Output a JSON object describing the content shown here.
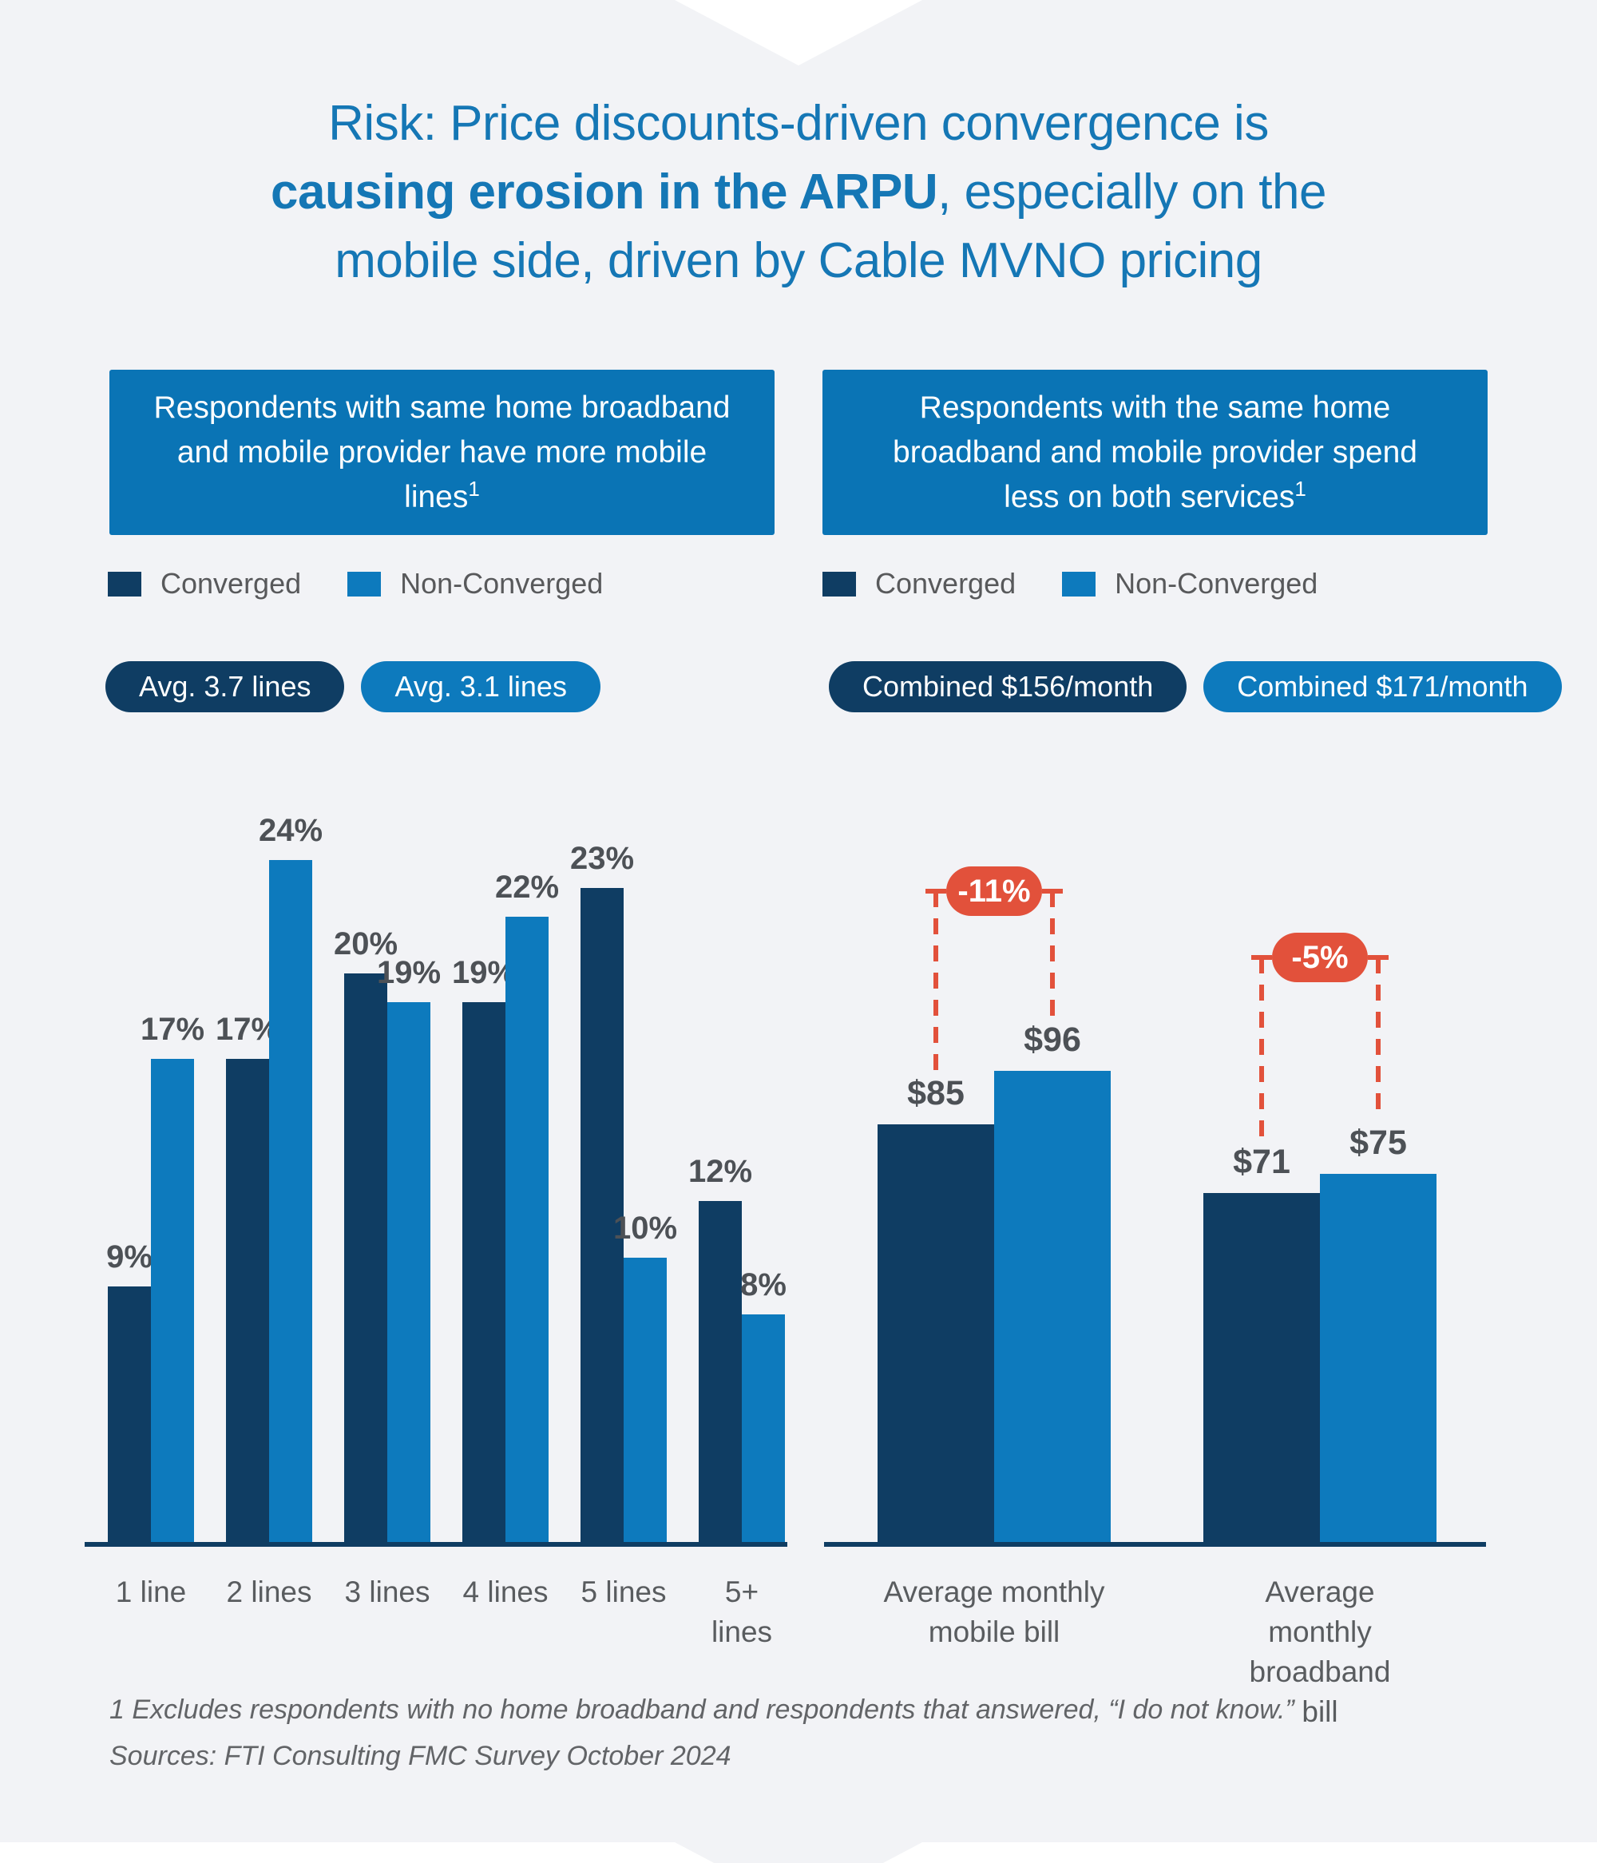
{
  "page": {
    "background_color": "#f2f3f6",
    "accent_blue": "#1577b5",
    "navy": "#0f3d63",
    "blue": "#0d7abd",
    "header_blue": "#0a74b5",
    "badge_red": "#e2513b"
  },
  "title": {
    "pre": "Risk: Price discounts-driven convergence is",
    "bold": "causing erosion in the ARPU",
    "after_bold": ", especially on the",
    "line3": "mobile side, driven by Cable MVNO pricing"
  },
  "panels": [
    {
      "header": "Respondents with same home broadband and mobile provider have more mobile lines",
      "header_sup": "1",
      "legend": [
        {
          "label": "Converged",
          "color": "#0f3d63"
        },
        {
          "label": "Non-Converged",
          "color": "#0d7abd"
        }
      ],
      "pills": [
        {
          "label": "Avg. 3.7 lines",
          "color": "#0f3d63"
        },
        {
          "label": "Avg. 3.1 lines",
          "color": "#0d7abd"
        }
      ]
    },
    {
      "header": "Respondents with the same home broadband and mobile provider spend less on both services",
      "header_sup": "1",
      "legend": [
        {
          "label": "Converged",
          "color": "#0f3d63"
        },
        {
          "label": "Non-Converged",
          "color": "#0d7abd"
        }
      ],
      "pills": [
        {
          "label": "Combined $156/month",
          "color": "#0f3d63"
        },
        {
          "label": "Combined $171/month",
          "color": "#0d7abd"
        }
      ]
    }
  ],
  "chart_data": [
    {
      "type": "bar",
      "title": "Respondents with same home broadband and mobile provider have more mobile lines",
      "categories": [
        "1 line",
        "2 lines",
        "3 lines",
        "4 lines",
        "5 lines",
        "5+ lines"
      ],
      "series": [
        {
          "name": "Converged",
          "color": "#0f3d63",
          "values": [
            9,
            17,
            20,
            19,
            23,
            12
          ]
        },
        {
          "name": "Non-Converged",
          "color": "#0d7abd",
          "values": [
            17,
            24,
            19,
            22,
            10,
            8
          ]
        }
      ],
      "unit": "%",
      "value_label_format": "{v}%",
      "ylim": [
        0,
        26
      ],
      "grid": false,
      "legend_position": "top-left",
      "annotations": [
        "Avg. 3.7 lines",
        "Avg. 3.1 lines"
      ]
    },
    {
      "type": "bar",
      "title": "Respondents with the same home broadband and mobile provider spend less on both services",
      "categories": [
        "Average monthly\nmobile bill",
        "Average monthly\nbroadband bill"
      ],
      "series": [
        {
          "name": "Converged",
          "color": "#0f3d63",
          "values": [
            85,
            71
          ]
        },
        {
          "name": "Non-Converged",
          "color": "#0d7abd",
          "values": [
            96,
            75
          ]
        }
      ],
      "unit": "$",
      "value_label_format": "${v}",
      "ylim": [
        0,
        100
      ],
      "grid": false,
      "legend_position": "top-left",
      "delta_badges": [
        {
          "label": "-11%",
          "group": 0
        },
        {
          "label": "-5%",
          "group": 1
        }
      ],
      "annotations": [
        "Combined $156/month",
        "Combined $171/month"
      ]
    }
  ],
  "footnote": {
    "line1": "1 Excludes respondents with no home broadband and respondents that answered, “I do not know.”",
    "line2": "Sources: FTI Consulting FMC Survey October 2024"
  }
}
